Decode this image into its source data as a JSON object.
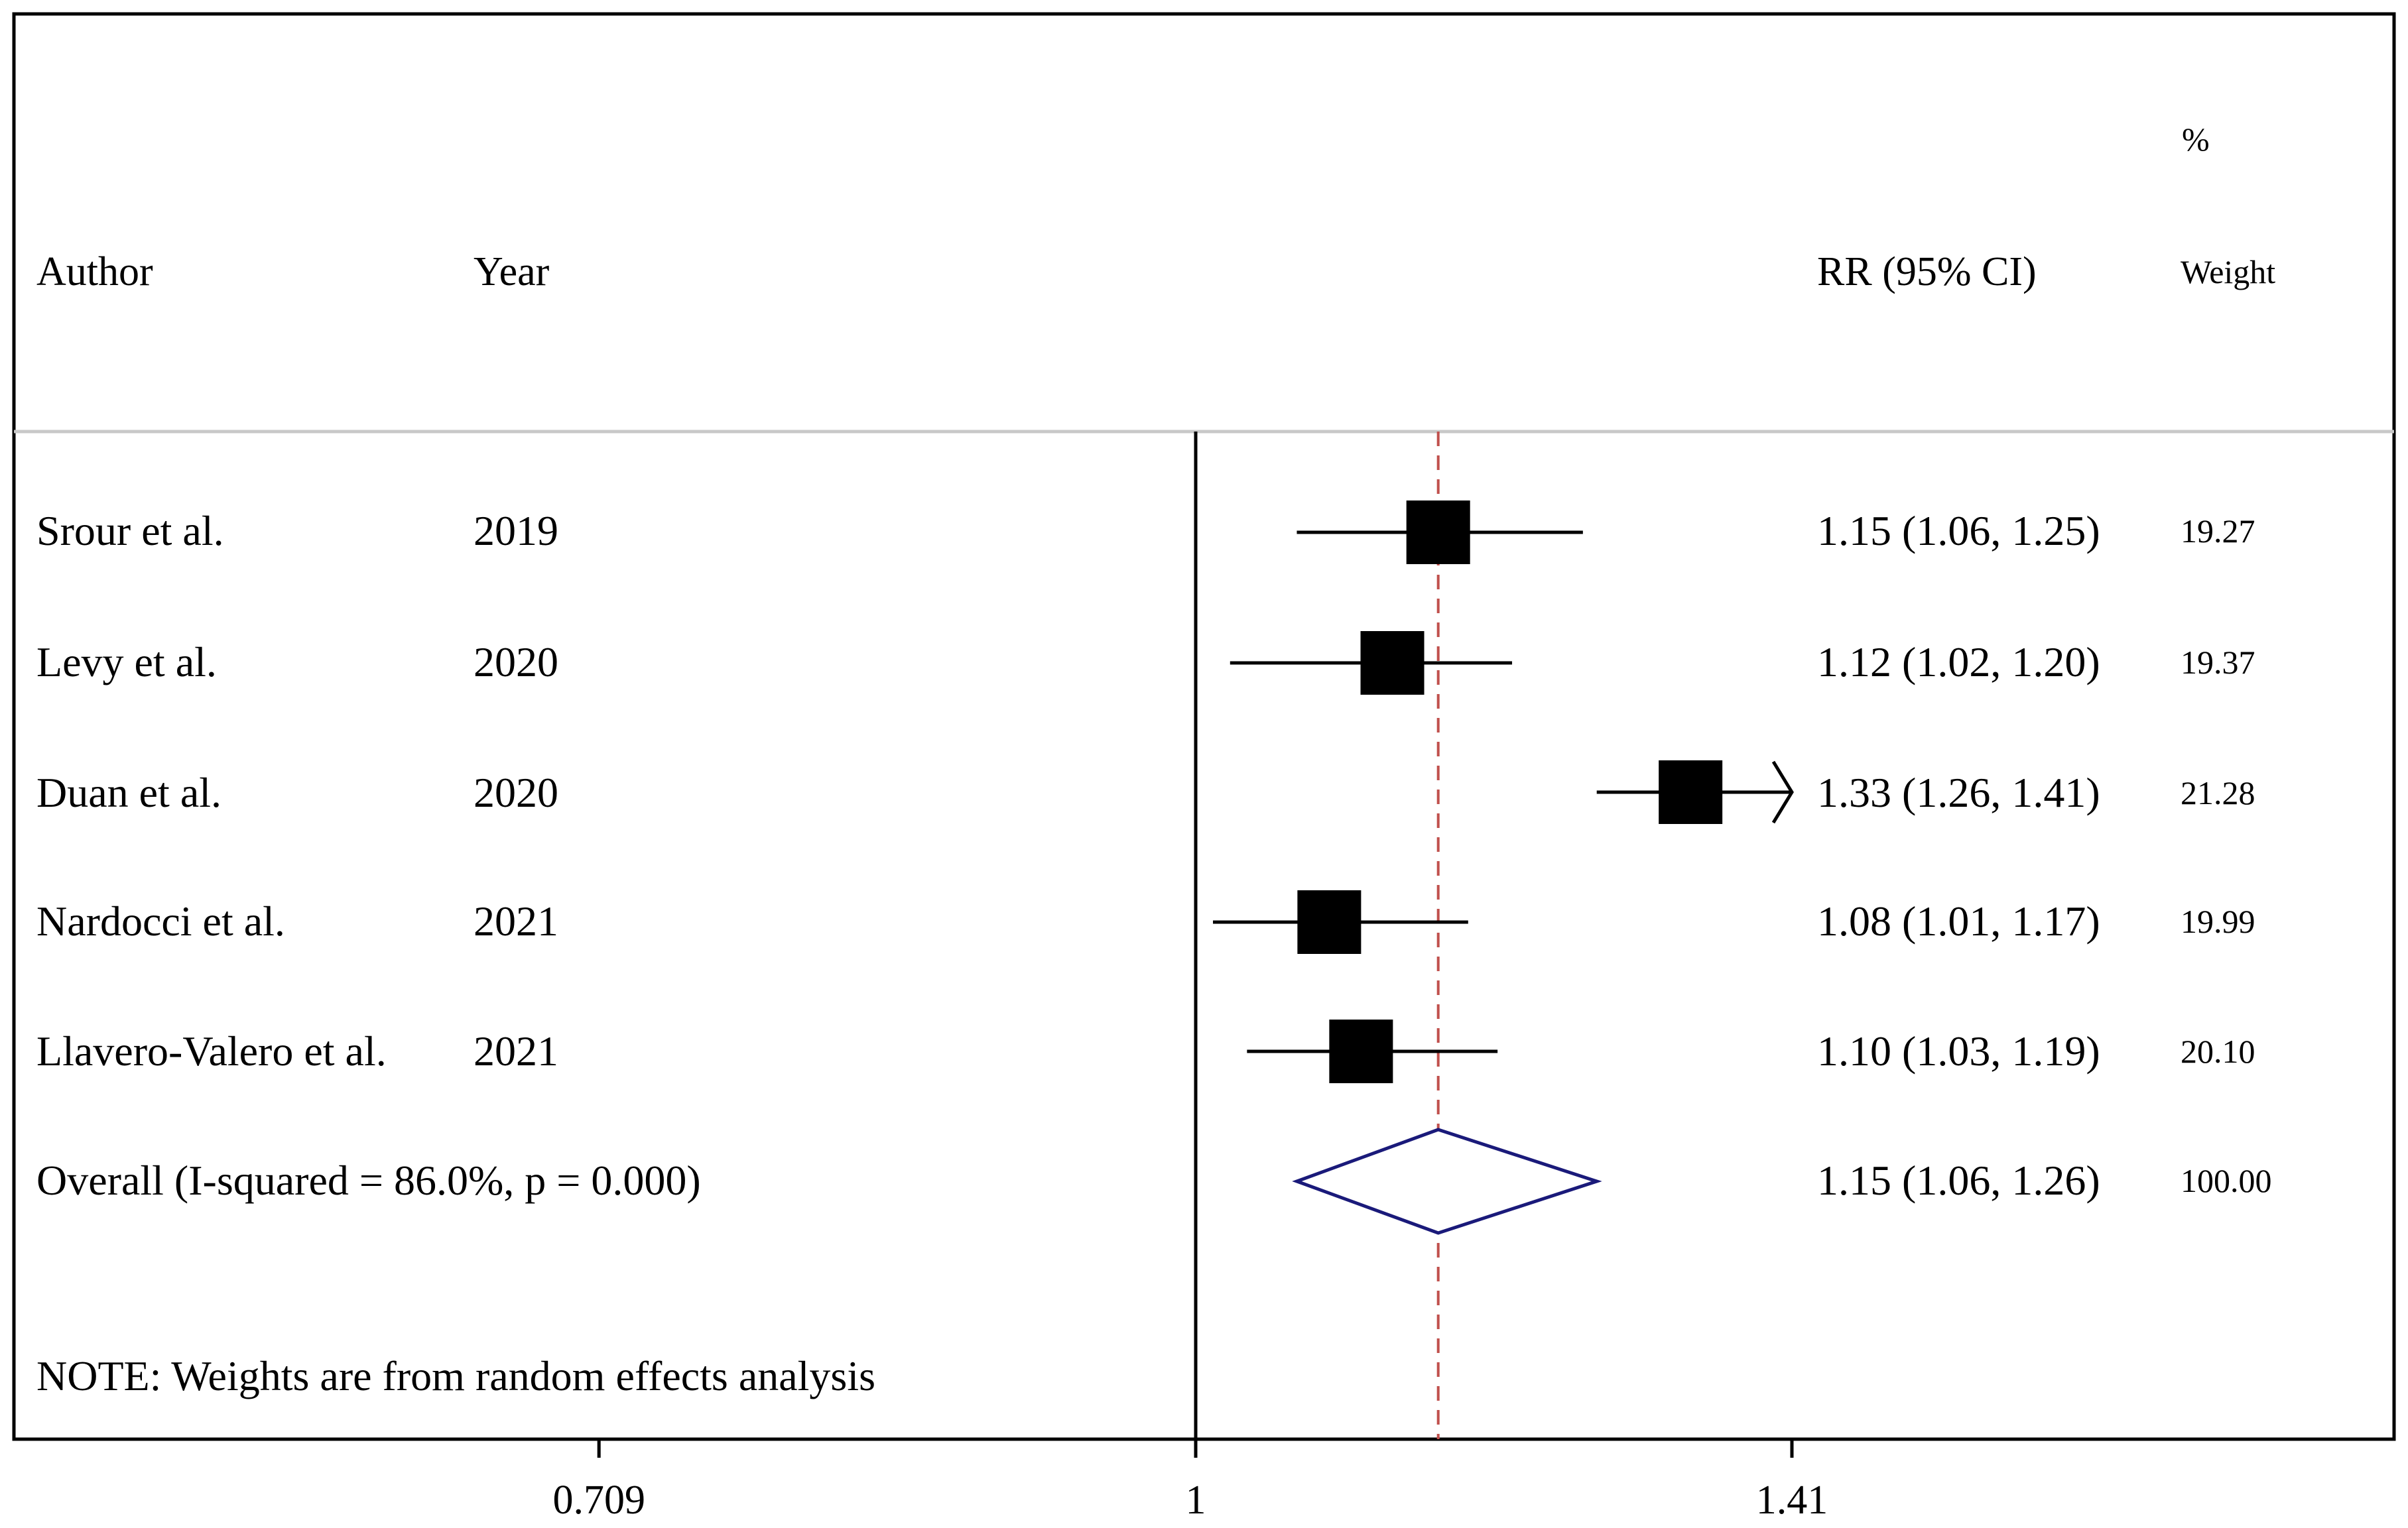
{
  "chart_data": {
    "type": "forest",
    "headers": {
      "author": "Author",
      "year": "Year",
      "effect": "RR (95% CI)",
      "weight_top": "%",
      "weight_bottom": "Weight"
    },
    "studies": [
      {
        "author": "Srour et al.",
        "year": "2019",
        "rr": 1.15,
        "lower": 1.06,
        "upper": 1.25,
        "ci_text": "1.15 (1.06, 1.25)",
        "weight": "19.27"
      },
      {
        "author": "Levy et al.",
        "year": "2020",
        "rr": 1.12,
        "lower": 1.02,
        "upper": 1.2,
        "ci_text": "1.12 (1.02, 1.20)",
        "weight": "19.37"
      },
      {
        "author": "Duan et al.",
        "year": "2020",
        "rr": 1.33,
        "lower": 1.26,
        "upper": 1.41,
        "ci_text": "1.33 (1.26, 1.41)",
        "weight": "21.28"
      },
      {
        "author": "Nardocci et al.",
        "year": "2021",
        "rr": 1.08,
        "lower": 1.01,
        "upper": 1.17,
        "ci_text": "1.08 (1.01, 1.17)",
        "weight": "19.99"
      },
      {
        "author": "Llavero-Valero et al.",
        "year": "2021",
        "rr": 1.1,
        "lower": 1.03,
        "upper": 1.19,
        "ci_text": "1.10 (1.03, 1.19)",
        "weight": "20.10"
      }
    ],
    "overall": {
      "label": "Overall  (I-squared = 86.0%, p = 0.000)",
      "rr": 1.15,
      "lower": 1.06,
      "upper": 1.26,
      "ci_text": "1.15 (1.06, 1.26)",
      "weight": "100.00"
    },
    "note": "NOTE: Weights are from random effects analysis",
    "x_scale": "log",
    "xlim": [
      0.709,
      1.41
    ],
    "null_value": 1,
    "x_ticks": [
      {
        "value": 0.709,
        "label": "0.709"
      },
      {
        "value": 1,
        "label": "1"
      },
      {
        "value": 1.41,
        "label": "1.41"
      }
    ],
    "colors": {
      "marker": "#000000",
      "diamond": "#1a1a7a",
      "overall_line": "#c0504d",
      "header_rule": "#c8c8c8"
    }
  }
}
